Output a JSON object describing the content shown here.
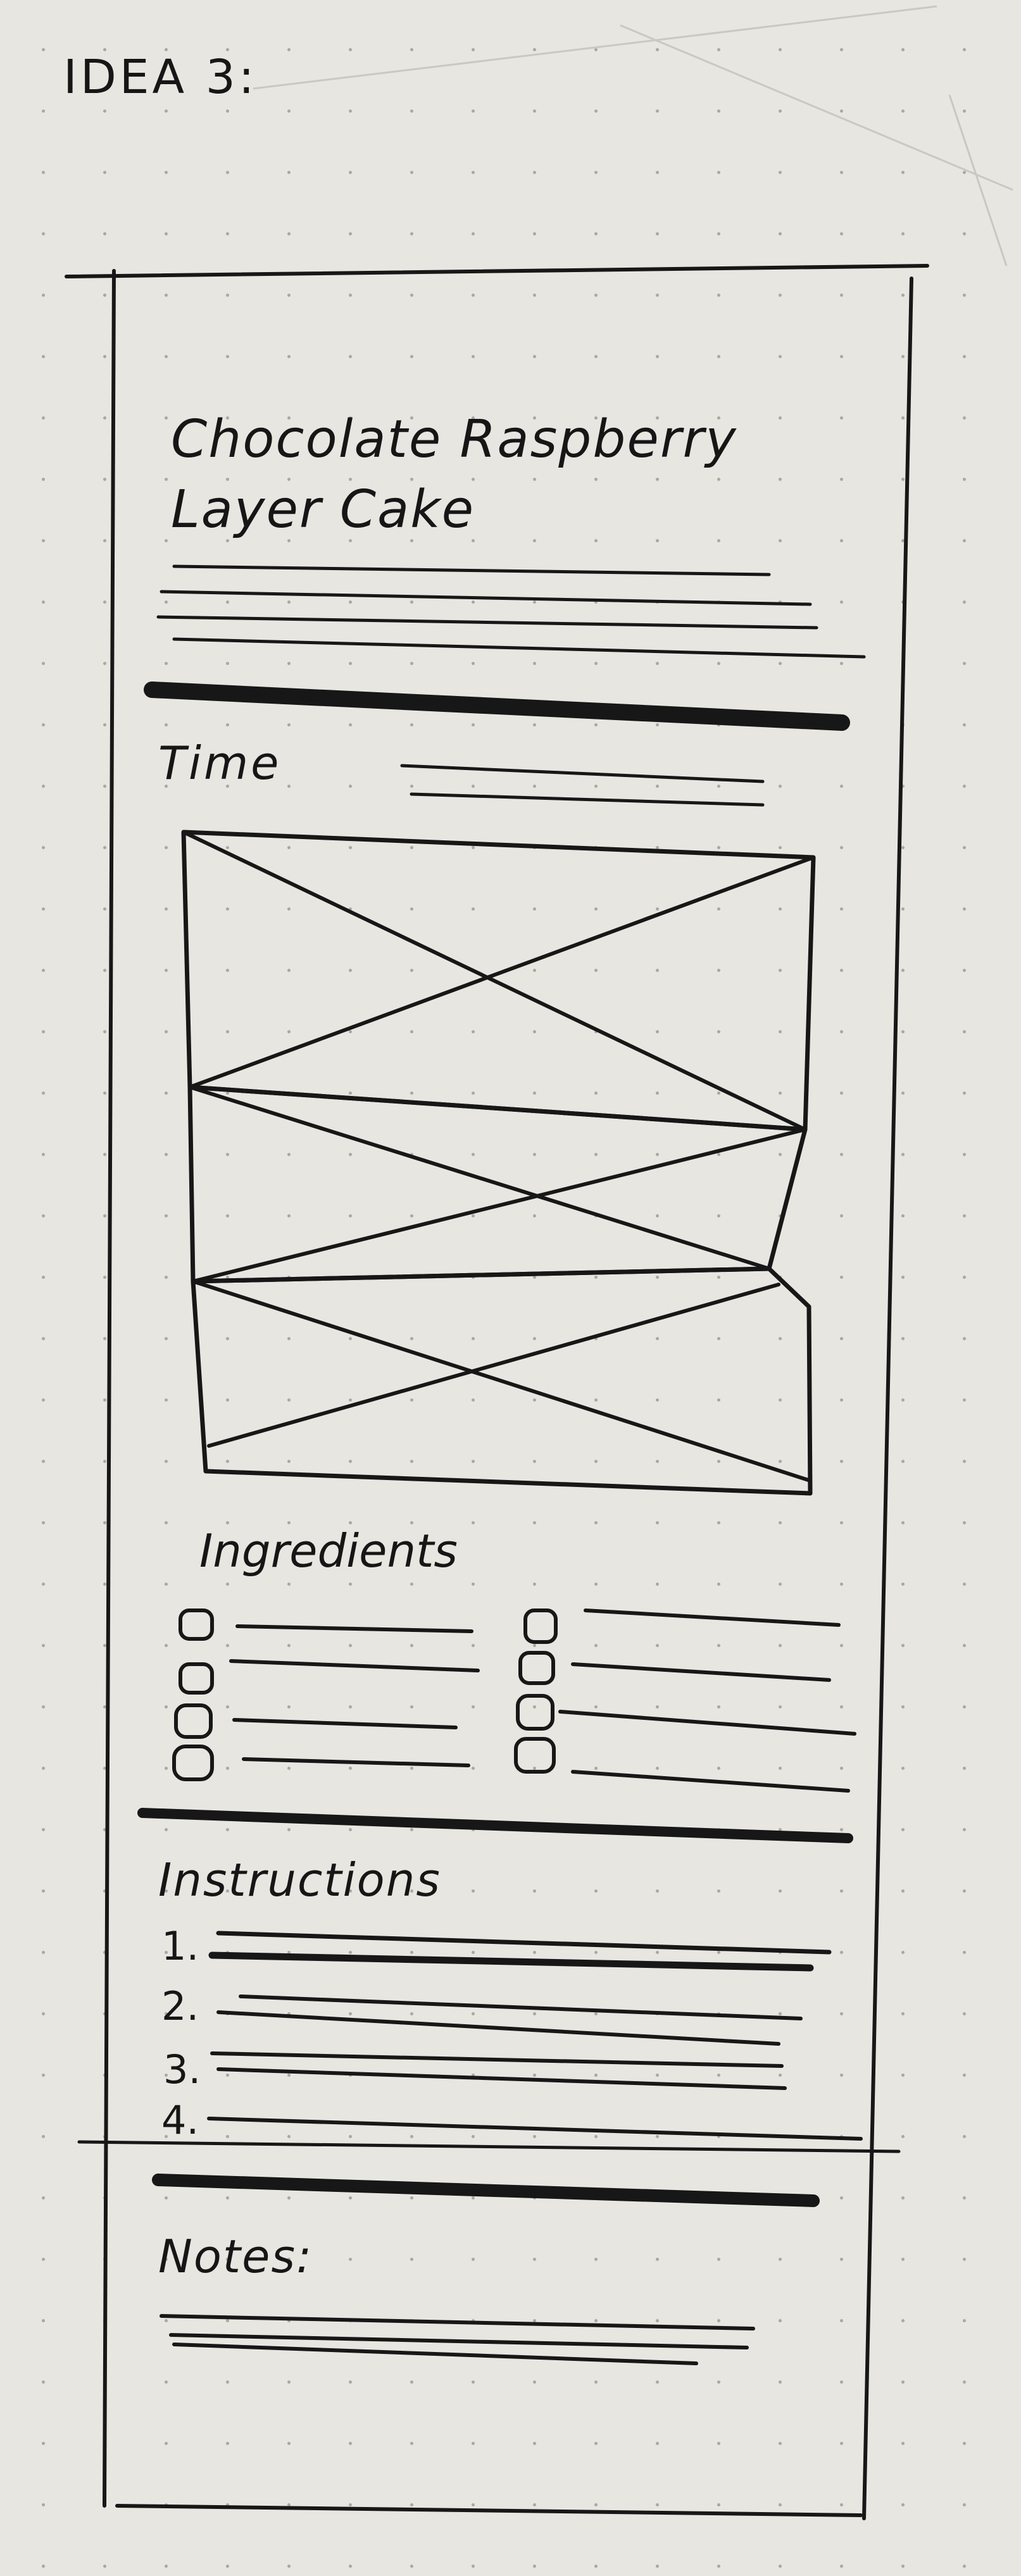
{
  "sketch_title": "IDEA 3:",
  "recipe_title": "Chocolate Raspberry Layer Cake",
  "sections": {
    "time": "Time",
    "ingredients": "Ingredients",
    "instructions": "Instructions",
    "notes": "Notes:"
  },
  "instruction_steps": [
    "1.",
    "2.",
    "3.",
    "4."
  ],
  "ink_color": "#171717",
  "paper_color": "#e7e6e1"
}
